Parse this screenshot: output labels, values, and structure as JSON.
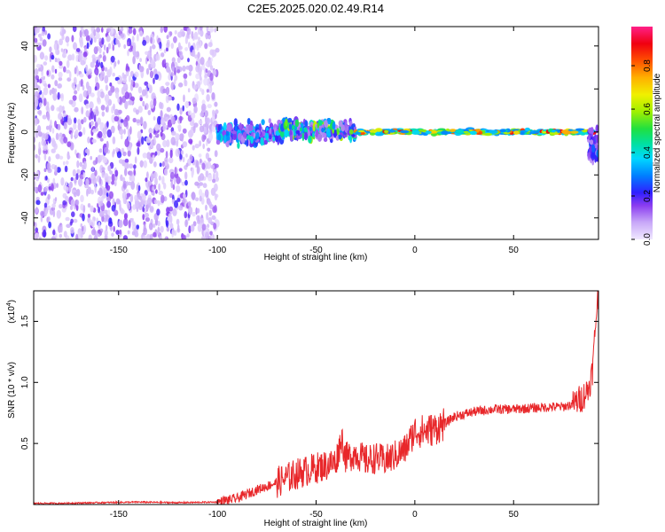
{
  "figure": {
    "title": "C2E5.2025.020.02.49.R14"
  },
  "colors": {
    "snr_line": "#e8272a",
    "axis": "#000000",
    "background": "#ffffff",
    "colormap": [
      "#d9c8f5",
      "#a97af0",
      "#6a1fe8",
      "#2040ff",
      "#00b8ff",
      "#00e0b0",
      "#30e040",
      "#c8f000",
      "#ffd000",
      "#ff7000",
      "#e00000",
      "#ff2080"
    ]
  },
  "chart_data": [
    {
      "type": "heatmap",
      "title": "C2E5.2025.020.02.49.R14",
      "xlabel": "Height of straight line (km)",
      "ylabel": "Frequency (Hz)",
      "xlim": [
        -193,
        93
      ],
      "ylim": [
        -50,
        49
      ],
      "xticks": [
        -150,
        -100,
        -50,
        0,
        50
      ],
      "xtick_labels": [
        "-150",
        "-100",
        "-50",
        "0",
        "50"
      ],
      "yticks": [
        -40,
        -20,
        0,
        20,
        40
      ],
      "ytick_labels": [
        "-40",
        "-20",
        "0",
        "20",
        "40"
      ],
      "grid": false,
      "colorbar": {
        "label": "Normalized spectral amplitude",
        "range": [
          0,
          0.98
        ],
        "ticks": [
          0.0,
          0.2,
          0.4,
          0.6,
          0.8
        ],
        "tick_labels": [
          "0.0",
          "0.2",
          "0.4",
          "0.6",
          "0.8"
        ]
      },
      "regions": [
        {
          "x": [
            -193,
            -100
          ],
          "freq": [
            -50,
            49
          ],
          "amplitude": [
            0.02,
            0.22
          ],
          "kind": "broadband noise"
        },
        {
          "x": [
            -100,
            -68
          ],
          "freq": [
            -8,
            6
          ],
          "amplitude": [
            0.1,
            0.45
          ],
          "kind": "emerging signal"
        },
        {
          "x": [
            -68,
            -30
          ],
          "freq": [
            -5,
            7
          ],
          "amplitude": [
            0.1,
            0.65
          ],
          "kind": "signal with spread"
        },
        {
          "x": [
            -30,
            90
          ],
          "freq": [
            -1.5,
            1.5
          ],
          "amplitude": [
            0.3,
            0.95
          ],
          "kind": "narrow tone near 0 Hz"
        },
        {
          "x": [
            88,
            93
          ],
          "freq": [
            -18,
            2
          ],
          "amplitude": [
            0.1,
            0.3
          ],
          "kind": "edge tail"
        }
      ]
    },
    {
      "type": "line",
      "xlabel": "Height of straight line (km)",
      "ylabel": "SNR (10 * v/v)",
      "y_multiplier": "(x10",
      "y_multiplier_exp": "4",
      "y_multiplier_close": ")",
      "xlim": [
        -193,
        93
      ],
      "ylim": [
        0,
        1.75
      ],
      "xticks": [
        -150,
        -100,
        -50,
        0,
        50
      ],
      "xtick_labels": [
        "-150",
        "-100",
        "-50",
        "0",
        "50"
      ],
      "yticks": [
        0.5,
        1.0,
        1.5
      ],
      "ytick_labels": [
        "0.5",
        "1.0",
        "1.5"
      ],
      "grid": false,
      "series": [
        {
          "x": [
            -193,
            -180,
            -160,
            -140,
            -120,
            -100,
            -90,
            -80,
            -70,
            -60,
            -50,
            -45,
            -40,
            -37,
            -35,
            -30,
            -25,
            -20,
            -15,
            -10,
            -5,
            0,
            5,
            10,
            15,
            20,
            30,
            40,
            50,
            60,
            70,
            75,
            80,
            85,
            88,
            90,
            92,
            93
          ],
          "y": [
            0.01,
            0.01,
            0.015,
            0.02,
            0.015,
            0.02,
            0.05,
            0.12,
            0.18,
            0.25,
            0.3,
            0.32,
            0.35,
            0.55,
            0.38,
            0.42,
            0.36,
            0.38,
            0.36,
            0.4,
            0.45,
            0.6,
            0.6,
            0.62,
            0.66,
            0.72,
            0.76,
            0.78,
            0.78,
            0.79,
            0.8,
            0.8,
            0.82,
            0.88,
            0.95,
            1.1,
            1.6,
            1.72
          ]
        }
      ]
    }
  ]
}
